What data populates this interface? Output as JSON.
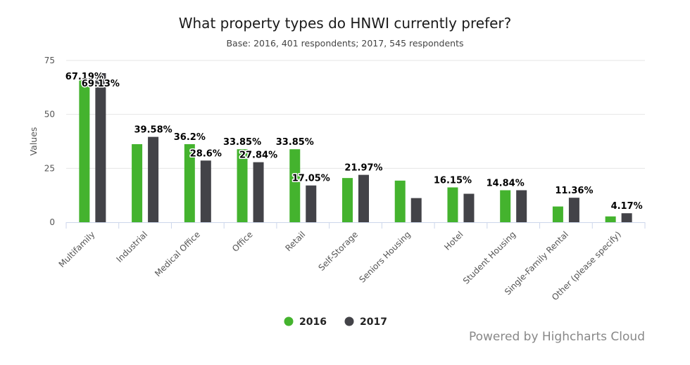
{
  "chart_data": {
    "type": "bar",
    "title": "What property types do HNWI currently prefer?",
    "subtitle": "Base: 2016, 401 respondents; 2017, 545 respondents",
    "ylabel": "Values",
    "xlabel": "",
    "ylim": [
      0,
      75
    ],
    "yticks": [
      0,
      25,
      50,
      75
    ],
    "grid": true,
    "legend_position": "bottom-center",
    "categories": [
      "Multifamily",
      "Industrial",
      "Medical Office",
      "Office",
      "Retail",
      "Self-Storage",
      "Seniors Housing",
      "Hotel",
      "Student Housing",
      "Single-Family Rental",
      "Other (please specify)"
    ],
    "series": [
      {
        "name": "2016",
        "color": "#44b32e",
        "values": [
          67.19,
          36.2,
          36.2,
          33.85,
          33.85,
          20.5,
          19.3,
          16.15,
          14.84,
          7.3,
          2.7
        ],
        "labels": [
          "67.19%",
          "",
          "36.2%",
          "33.85%",
          "33.85%",
          "",
          "",
          "16.15%",
          "14.84%",
          "",
          ""
        ]
      },
      {
        "name": "2017",
        "color": "#434348",
        "values": [
          69.13,
          39.58,
          28.6,
          27.84,
          17.05,
          21.97,
          11.2,
          13.2,
          14.84,
          11.36,
          4.17
        ],
        "labels": [
          "69.13%",
          "39.58%",
          "28.6%",
          "27.84%",
          "17.05%",
          "21.97%",
          "",
          "",
          "",
          "11.36%",
          "4.17%"
        ]
      }
    ]
  },
  "credits": "Powered by Highcharts Cloud"
}
